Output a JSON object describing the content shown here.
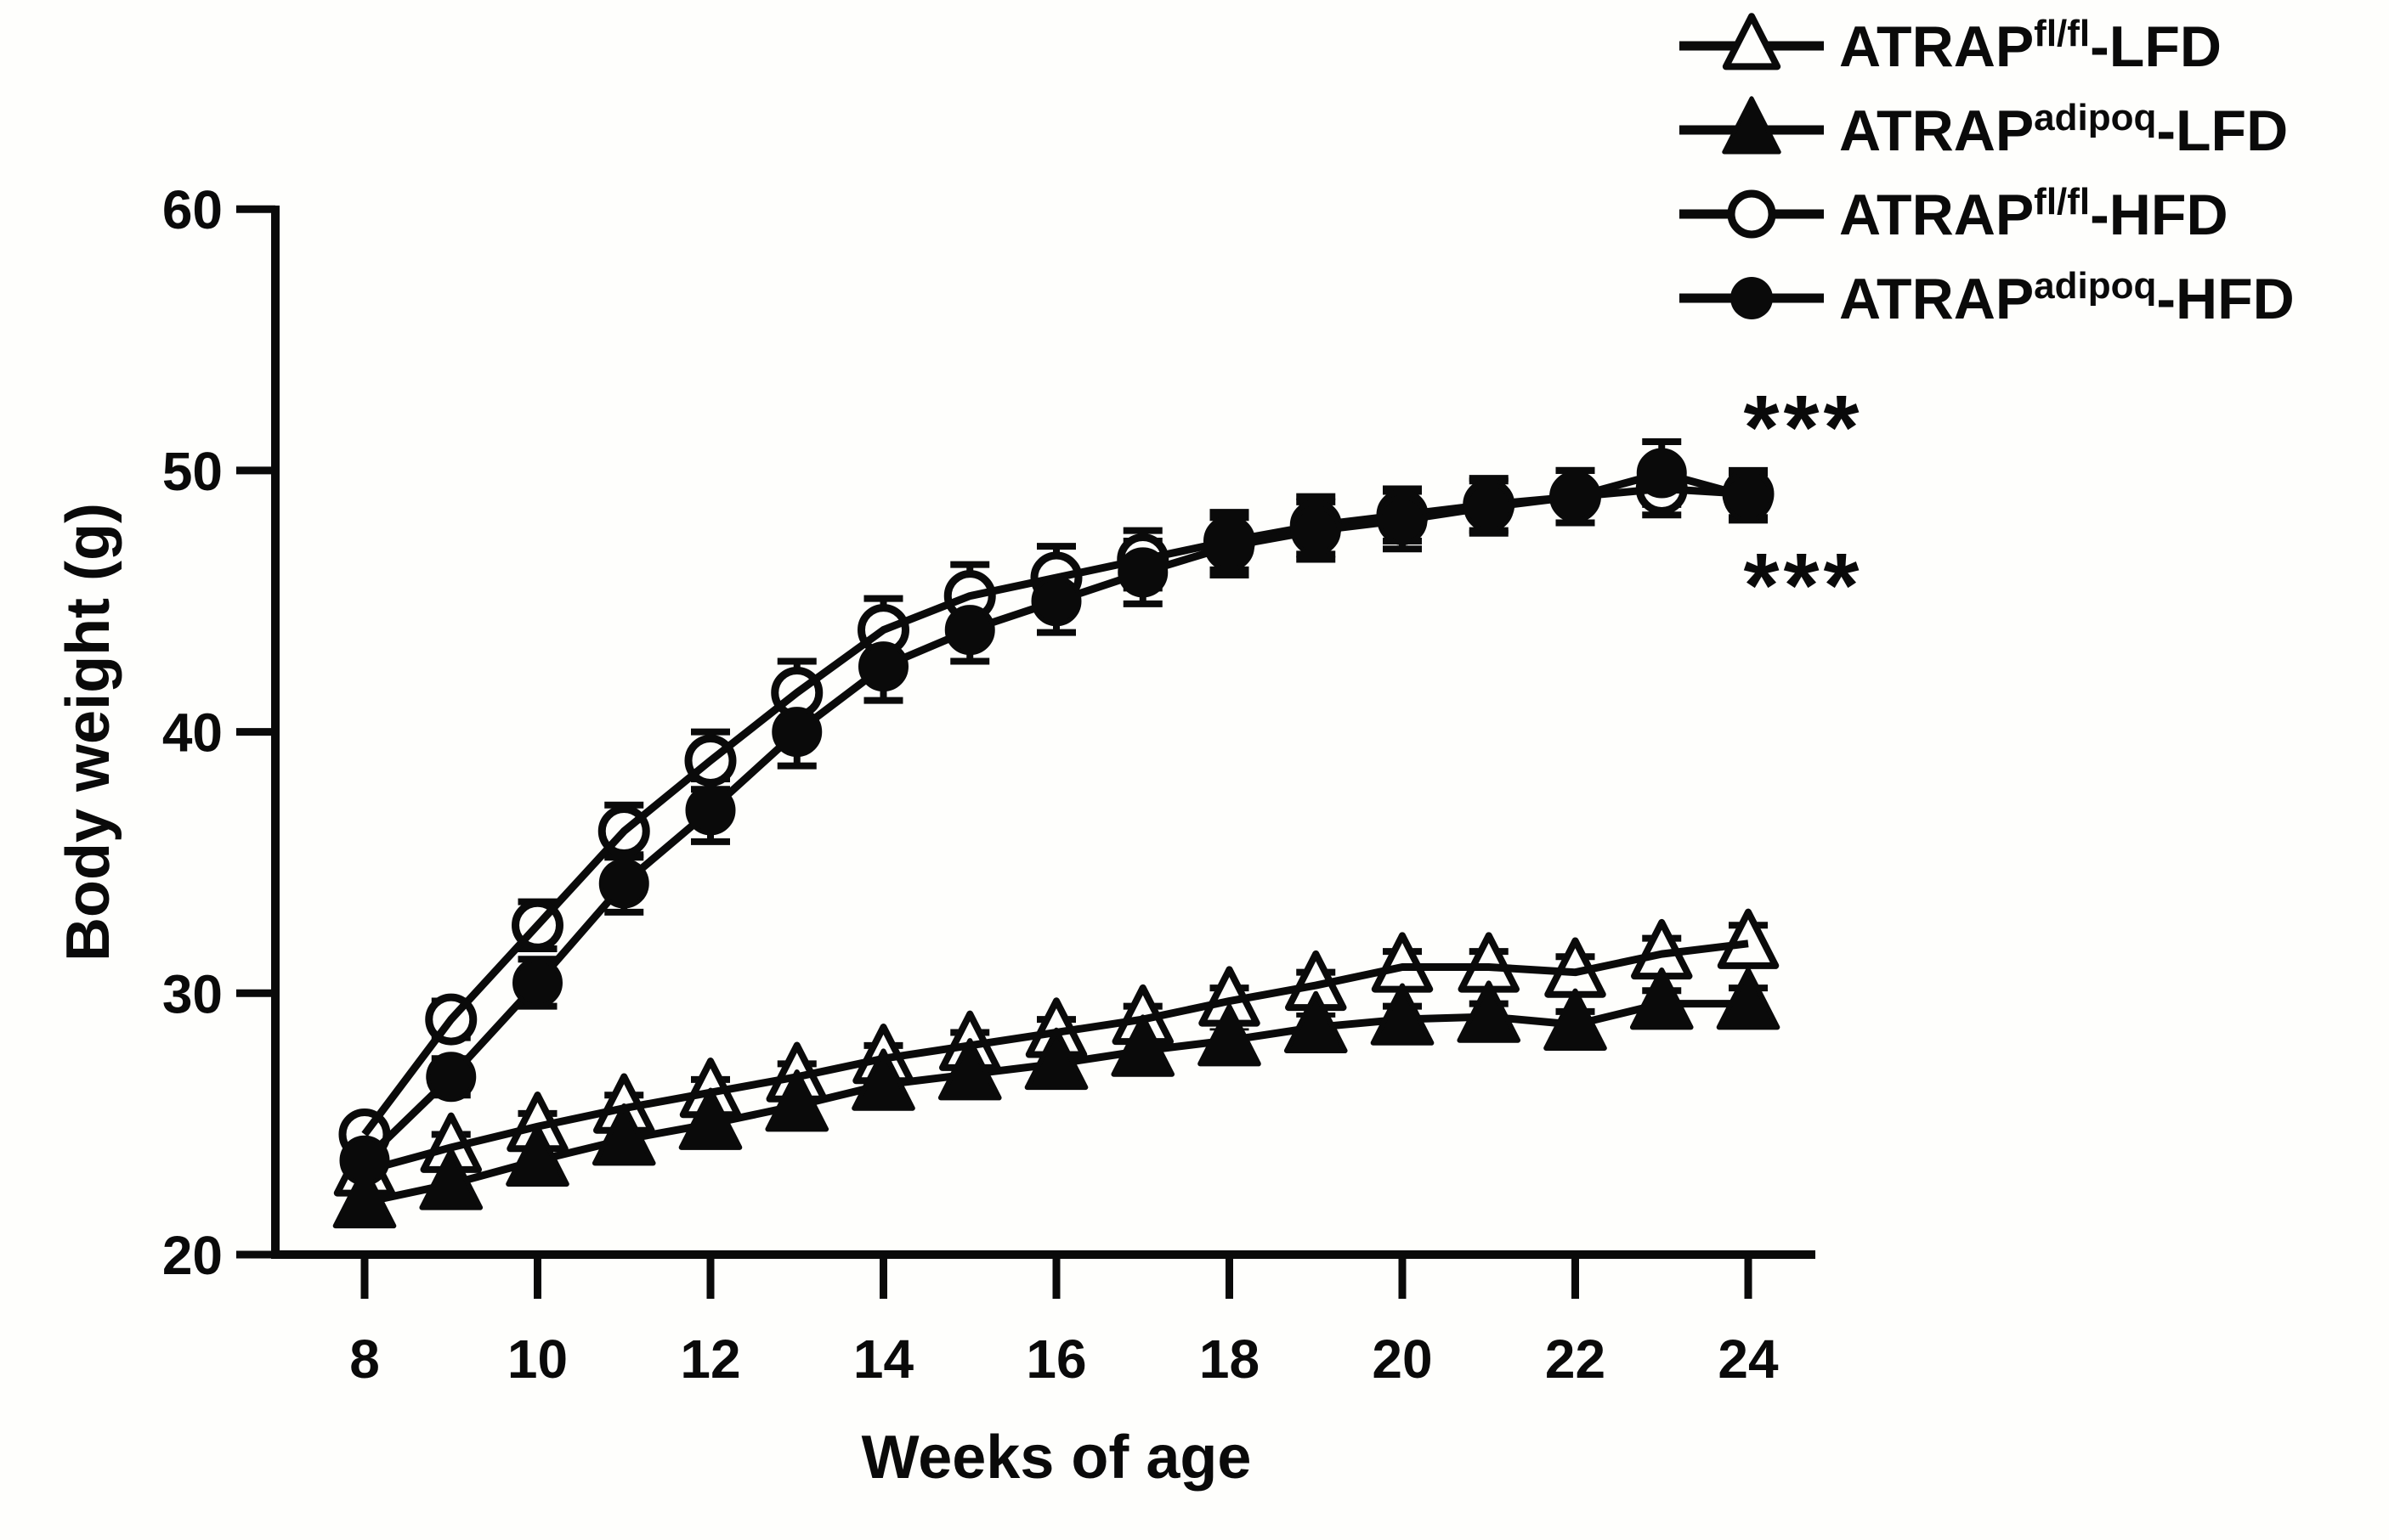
{
  "figure": {
    "background": "#fefefc",
    "ink": "#0a0a0a"
  },
  "legend": {
    "items": [
      {
        "marker": "triangle-open",
        "prefix": "ATRAP",
        "sup": "fl/fl",
        "suffix": "-LFD"
      },
      {
        "marker": "triangle-filled",
        "prefix": "ATRAP",
        "sup": "adipoq",
        "suffix": "-LFD"
      },
      {
        "marker": "circle-open",
        "prefix": "ATRAP",
        "sup": "fl/fl",
        "suffix": "-HFD"
      },
      {
        "marker": "circle-filled",
        "prefix": "ATRAP",
        "sup": "adipoq",
        "suffix": "-HFD"
      }
    ]
  },
  "chart_data": {
    "type": "line",
    "title": "",
    "xlabel": "Weeks of age",
    "ylabel": "Body weight (g)",
    "x": [
      8,
      9,
      10,
      11,
      12,
      13,
      14,
      15,
      16,
      17,
      18,
      19,
      20,
      21,
      22,
      23,
      24
    ],
    "x_ticks": [
      8,
      10,
      12,
      14,
      16,
      18,
      20,
      22,
      24
    ],
    "y_ticks": [
      20,
      30,
      40,
      50,
      60
    ],
    "xlim": [
      7.0,
      24.8
    ],
    "ylim": [
      20,
      60
    ],
    "grid": false,
    "legend_position": "top-right",
    "series": [
      {
        "name": "ATRAP fl/fl - LFD",
        "marker": "triangle-open",
        "values": [
          23.2,
          24.1,
          24.9,
          25.6,
          26.2,
          26.8,
          27.5,
          28.0,
          28.5,
          29.0,
          29.7,
          30.3,
          31.0,
          31.0,
          30.8,
          31.5,
          31.9
        ],
        "sem": [
          0.5,
          0.5,
          0.5,
          0.5,
          0.5,
          0.5,
          0.5,
          0.5,
          0.5,
          0.5,
          0.5,
          0.5,
          0.6,
          0.6,
          0.6,
          0.6,
          0.7
        ]
      },
      {
        "name": "ATRAP adipoq - LFD",
        "marker": "triangle-filled",
        "values": [
          22.0,
          22.7,
          23.6,
          24.4,
          25.0,
          25.7,
          26.5,
          26.9,
          27.3,
          27.8,
          28.2,
          28.7,
          29.0,
          29.1,
          28.8,
          29.6,
          29.6
        ],
        "sem": [
          0.5,
          0.5,
          0.5,
          0.5,
          0.5,
          0.5,
          0.5,
          0.5,
          0.5,
          0.5,
          0.5,
          0.5,
          0.5,
          0.5,
          0.5,
          0.5,
          0.6
        ]
      },
      {
        "name": "ATRAP fl/fl - HFD",
        "marker": "circle-open",
        "values": [
          24.6,
          29.0,
          32.6,
          36.2,
          38.9,
          41.5,
          43.9,
          45.2,
          45.9,
          46.6,
          47.3,
          47.9,
          48.3,
          48.7,
          49.0,
          49.3,
          49.1
        ],
        "sem": [
          0.5,
          0.7,
          0.9,
          1.0,
          1.1,
          1.2,
          1.2,
          1.2,
          1.2,
          1.1,
          1.1,
          1.1,
          1.0,
          1.0,
          1.0,
          1.0,
          0.9
        ]
      },
      {
        "name": "ATRAP adipoq - HFD",
        "marker": "circle-filled",
        "values": [
          23.6,
          26.8,
          30.4,
          34.2,
          37.0,
          40.0,
          42.5,
          43.9,
          45.0,
          46.1,
          47.1,
          47.7,
          48.1,
          48.6,
          49.0,
          49.9,
          49.0
        ],
        "sem": [
          0.5,
          0.7,
          0.9,
          1.1,
          1.2,
          1.3,
          1.3,
          1.2,
          1.2,
          1.2,
          1.1,
          1.1,
          1.1,
          1.0,
          1.0,
          1.2,
          0.9
        ]
      }
    ],
    "annotations": [
      {
        "text": "***",
        "x": 24.55,
        "y": 52.2
      },
      {
        "text": "***",
        "x": 24.55,
        "y": 46.2
      }
    ]
  }
}
